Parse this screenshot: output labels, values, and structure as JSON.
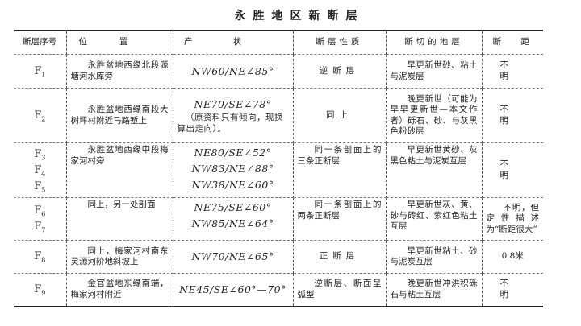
{
  "title": "永胜地区新断层",
  "headers": {
    "id": "断层序号",
    "location": "位置",
    "attitude": "产状",
    "nature": "断层性质",
    "strata": "断切的地层",
    "throw_a": "断",
    "throw_b": "距"
  },
  "rows": [
    {
      "ids": [
        {
          "f": "F",
          "n": "1"
        }
      ],
      "location": "永胜盆地西缘北段源塘河水库旁",
      "attitudes": [
        "NW60/NE∠85°"
      ],
      "nature": "逆断层",
      "strata": "早更新世砂、粘土与泥炭层",
      "throw": "不明"
    },
    {
      "ids": [
        {
          "f": "F",
          "n": "2"
        }
      ],
      "location": "永胜盆地西缘南段大树坪村附近马路堑上",
      "attitudes": [
        "NE70/SE∠78°"
      ],
      "attitude_note": "（原资料只有倾向，现换算出走向）。",
      "nature": "同上",
      "strata": "晚更新世（可能为早早更新世—本文作者）砾石、砂、与灰黑色粉砂层",
      "throw": "不明"
    },
    {
      "ids": [
        {
          "f": "F",
          "n": "3"
        },
        {
          "f": "F",
          "n": "4"
        },
        {
          "f": "F",
          "n": "5"
        }
      ],
      "location": "永胜盆地西缘中段梅家河村旁",
      "attitudes": [
        "NE80/SE∠52°",
        "NW83/NE∠88°",
        "NW38/NE∠60°"
      ],
      "nature": "同一条剖面上的三条正断层",
      "strata": "早更新世黄砂、灰黑色粘土与泥炭互层",
      "throw": "不明"
    },
    {
      "ids": [
        {
          "f": "F",
          "n": "6"
        },
        {
          "f": "F",
          "n": "7"
        }
      ],
      "location": "同上，另一处剖面",
      "attitudes": [
        "NE75/SE∠60°",
        "NW85/NE∠64°"
      ],
      "nature": "同一条剖面上的两条正断层",
      "strata": "早更新世灰、黄、砂与砖红、紫红色粘土互层",
      "throw": "不明，但定性描述为“断距很大”"
    },
    {
      "ids": [
        {
          "f": "F",
          "n": "8"
        }
      ],
      "location": "同上，梅家河村南东灵源河阶地斜坡上",
      "attitudes": [
        "NW70/NE∠65°"
      ],
      "nature": "正断层",
      "strata": "早更新世粘土、砂与泥炭互层",
      "throw": "0.8米"
    },
    {
      "ids": [
        {
          "f": "F",
          "n": "9"
        }
      ],
      "location": "金官盆地东缘南端，梅家河村附近",
      "attitudes": [
        "NE45/SE∠60°—70°"
      ],
      "nature": "逆断层、断面呈弧型",
      "strata": "晚更新世冲洪积砾石与粘土互层",
      "throw": "不明"
    }
  ]
}
